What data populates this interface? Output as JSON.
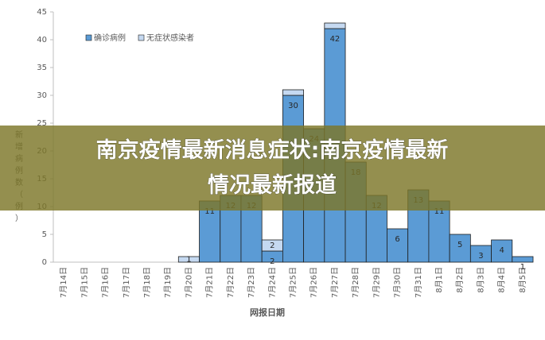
{
  "chart_data": {
    "type": "stacked-bar",
    "banner": "南京疫情最新消息症状:南京疫情最新情况最新报道",
    "ylabel": "新增病例数（例）",
    "xlabel": "网报日期",
    "categories": [
      "7月14日",
      "7月15日",
      "7月16日",
      "7月17日",
      "7月18日",
      "7月19日",
      "7月20日",
      "7月21日",
      "7月22日",
      "7月23日",
      "7月24日",
      "7月25日",
      "7月26日",
      "7月27日",
      "7月28日",
      "7月29日",
      "7月30日",
      "7月31日",
      "8月1日",
      "8月2日",
      "8月3日",
      "8月4日",
      "8月5日"
    ],
    "series": [
      {
        "name": "确诊病例",
        "color": "#5b9bd5",
        "values": [
          0,
          0,
          0,
          0,
          0,
          0,
          0,
          11,
          12,
          12,
          2,
          30,
          24,
          42,
          18,
          12,
          6,
          13,
          11,
          5,
          3,
          4,
          1
        ]
      },
      {
        "name": "无症状感染者",
        "color": "#c5d9f1",
        "values": [
          0,
          0,
          0,
          0,
          0,
          0,
          1,
          0,
          0,
          0,
          2,
          1,
          0,
          1,
          0,
          0,
          0,
          0,
          0,
          0,
          0,
          0,
          0
        ]
      }
    ],
    "ylim": [
      0,
      45
    ],
    "yticks": [
      0,
      5,
      10,
      15,
      20,
      25,
      30,
      35,
      40,
      45
    ],
    "grid": false,
    "legend": "top-left"
  }
}
